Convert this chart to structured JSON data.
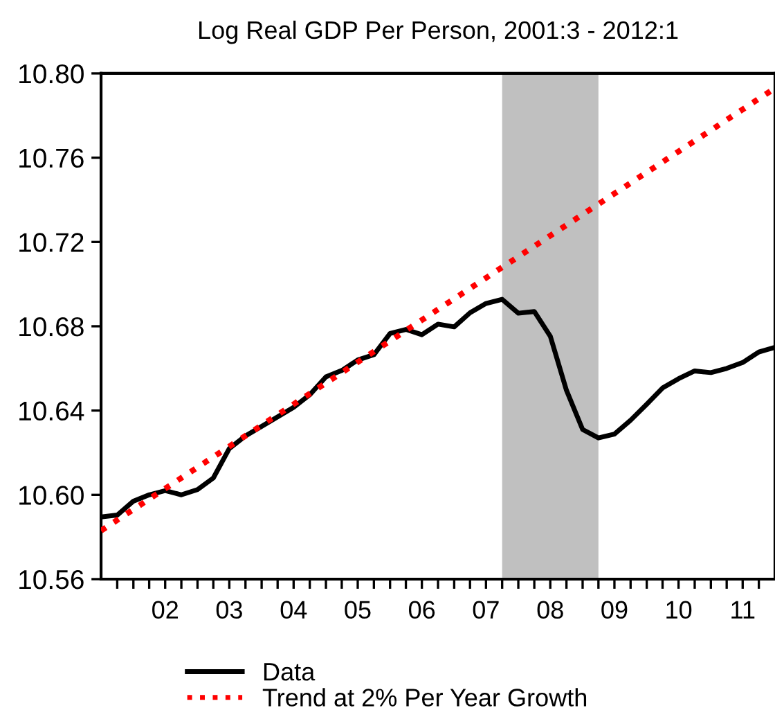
{
  "chart_data": {
    "type": "line",
    "title": "Log Real GDP Per Person, 2001:3 - 2012:1",
    "series": [
      {
        "name": "Data",
        "color": "#000000",
        "line_style": "solid",
        "x": [
          "2001-07",
          "2001-10",
          "2002-01",
          "2002-04",
          "2002-07",
          "2002-10",
          "2003-01",
          "2003-04",
          "2003-07",
          "2003-10",
          "2004-01",
          "2004-04",
          "2004-07",
          "2004-10",
          "2005-01",
          "2005-04",
          "2005-07",
          "2005-10",
          "2006-01",
          "2006-04",
          "2006-07",
          "2006-10",
          "2007-01",
          "2007-04",
          "2007-07",
          "2007-10",
          "2008-01",
          "2008-04",
          "2008-07",
          "2008-10",
          "2009-01",
          "2009-04",
          "2009-07",
          "2009-10",
          "2010-01",
          "2010-04",
          "2010-07",
          "2010-10",
          "2011-01",
          "2011-04",
          "2011-07",
          "2011-10",
          "2012-01"
        ],
        "values": [
          10.5895,
          10.5904,
          10.597,
          10.6,
          10.602,
          10.6,
          10.6025,
          10.608,
          10.622,
          10.628,
          10.6325,
          10.637,
          10.6415,
          10.6475,
          10.656,
          10.659,
          10.664,
          10.6665,
          10.6766,
          10.6785,
          10.676,
          10.681,
          10.6797,
          10.6864,
          10.6908,
          10.6928,
          10.6862,
          10.687,
          10.6753,
          10.6496,
          10.631,
          10.627,
          10.6288,
          10.6354,
          10.643,
          10.6507,
          10.6551,
          10.6588,
          10.658,
          10.66,
          10.6628,
          10.6678,
          10.67
        ]
      },
      {
        "name": "Trend at 2% Per Year Growth",
        "color": "#ff0000",
        "line_style": "dotted",
        "x": [
          "2001-07",
          "2012-01"
        ],
        "values": [
          10.583,
          10.793
        ]
      }
    ],
    "bands": [
      {
        "axis": "x",
        "from": "2007-10",
        "to": "2009-04",
        "color": "#c0c0c0"
      }
    ],
    "xlim": [
      "2001-07",
      "2012-01"
    ],
    "xticks": [
      {
        "value": "2001-10",
        "label": null
      },
      {
        "value": "2002-01",
        "label": null
      },
      {
        "value": "2002-04",
        "label": null
      },
      {
        "value": "2002-07",
        "label": "02"
      },
      {
        "value": "2002-10",
        "label": null
      },
      {
        "value": "2003-01",
        "label": null
      },
      {
        "value": "2003-04",
        "label": null
      },
      {
        "value": "2003-07",
        "label": "03"
      },
      {
        "value": "2003-10",
        "label": null
      },
      {
        "value": "2004-01",
        "label": null
      },
      {
        "value": "2004-04",
        "label": null
      },
      {
        "value": "2004-07",
        "label": "04"
      },
      {
        "value": "2004-10",
        "label": null
      },
      {
        "value": "2005-01",
        "label": null
      },
      {
        "value": "2005-04",
        "label": null
      },
      {
        "value": "2005-07",
        "label": "05"
      },
      {
        "value": "2005-10",
        "label": null
      },
      {
        "value": "2006-01",
        "label": null
      },
      {
        "value": "2006-04",
        "label": null
      },
      {
        "value": "2006-07",
        "label": "06"
      },
      {
        "value": "2006-10",
        "label": null
      },
      {
        "value": "2007-01",
        "label": null
      },
      {
        "value": "2007-04",
        "label": null
      },
      {
        "value": "2007-07",
        "label": "07"
      },
      {
        "value": "2007-10",
        "label": null
      },
      {
        "value": "2008-01",
        "label": null
      },
      {
        "value": "2008-04",
        "label": null
      },
      {
        "value": "2008-07",
        "label": "08"
      },
      {
        "value": "2008-10",
        "label": null
      },
      {
        "value": "2009-01",
        "label": null
      },
      {
        "value": "2009-04",
        "label": null
      },
      {
        "value": "2009-07",
        "label": "09"
      },
      {
        "value": "2009-10",
        "label": null
      },
      {
        "value": "2010-01",
        "label": null
      },
      {
        "value": "2010-04",
        "label": null
      },
      {
        "value": "2010-07",
        "label": "10"
      },
      {
        "value": "2010-10",
        "label": null
      },
      {
        "value": "2011-01",
        "label": null
      },
      {
        "value": "2011-04",
        "label": null
      },
      {
        "value": "2011-07",
        "label": "11"
      },
      {
        "value": "2011-10",
        "label": null
      }
    ],
    "ylim": [
      10.56,
      10.8
    ],
    "yticks": [
      {
        "value": 10.56,
        "label": "10.56"
      },
      {
        "value": 10.6,
        "label": "10.60"
      },
      {
        "value": 10.64,
        "label": "10.64"
      },
      {
        "value": 10.68,
        "label": "10.68"
      },
      {
        "value": 10.72,
        "label": "10.72"
      },
      {
        "value": 10.76,
        "label": "10.76"
      },
      {
        "value": 10.8,
        "label": "10.80"
      }
    ],
    "grid": false,
    "legend": "bottom"
  }
}
